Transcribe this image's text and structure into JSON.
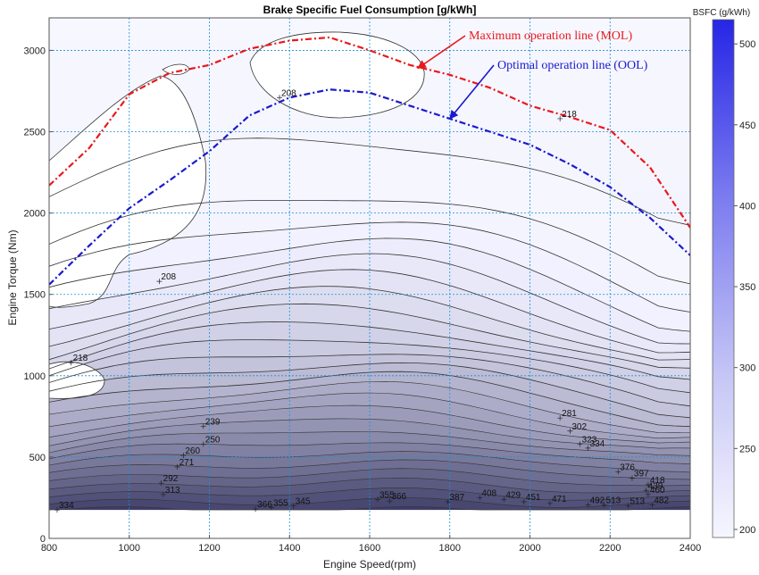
{
  "chart_data": {
    "type": "contour",
    "title": "Brake Specific Fuel Consumption [g/kWh]",
    "xlabel": "Engine Speed(rpm)",
    "ylabel": "Engine Torque (Nm)",
    "xlim": [
      800,
      2400
    ],
    "ylim": [
      0,
      3200
    ],
    "xticks": [
      800,
      1000,
      1200,
      1400,
      1600,
      1800,
      2000,
      2200,
      2400
    ],
    "yticks": [
      0,
      500,
      1000,
      1500,
      2000,
      2500,
      3000
    ],
    "grid": true,
    "colorbar": {
      "title": "BSFC (g/kWh)",
      "range": [
        195,
        515
      ],
      "ticks": [
        200,
        250,
        300,
        350,
        400,
        450,
        500
      ],
      "color_low": "#f4f4ff",
      "color_high": "#2a2ae8"
    },
    "contour_labels": [
      {
        "text": "334",
        "x": 820,
        "y": 175
      },
      {
        "text": "218",
        "x": 855,
        "y": 1080
      },
      {
        "text": "208",
        "x": 1075,
        "y": 1580
      },
      {
        "text": "239",
        "x": 1185,
        "y": 690
      },
      {
        "text": "250",
        "x": 1185,
        "y": 580
      },
      {
        "text": "260",
        "x": 1135,
        "y": 510
      },
      {
        "text": "271",
        "x": 1120,
        "y": 440
      },
      {
        "text": "292",
        "x": 1080,
        "y": 340
      },
      {
        "text": "313",
        "x": 1085,
        "y": 270
      },
      {
        "text": "366",
        "x": 1315,
        "y": 180
      },
      {
        "text": "355",
        "x": 1355,
        "y": 190
      },
      {
        "text": "345",
        "x": 1410,
        "y": 200
      },
      {
        "text": "208",
        "x": 1375,
        "y": 2710
      },
      {
        "text": "355",
        "x": 1620,
        "y": 240
      },
      {
        "text": "366",
        "x": 1650,
        "y": 230
      },
      {
        "text": "387",
        "x": 1795,
        "y": 225
      },
      {
        "text": "408",
        "x": 1875,
        "y": 250
      },
      {
        "text": "429",
        "x": 1935,
        "y": 240
      },
      {
        "text": "451",
        "x": 1985,
        "y": 225
      },
      {
        "text": "471",
        "x": 2050,
        "y": 215
      },
      {
        "text": "492",
        "x": 2145,
        "y": 205
      },
      {
        "text": "513",
        "x": 2185,
        "y": 205
      },
      {
        "text": "218",
        "x": 2075,
        "y": 2580
      },
      {
        "text": "281",
        "x": 2075,
        "y": 740
      },
      {
        "text": "302",
        "x": 2100,
        "y": 660
      },
      {
        "text": "323",
        "x": 2125,
        "y": 580
      },
      {
        "text": "334",
        "x": 2145,
        "y": 555
      },
      {
        "text": "376",
        "x": 2220,
        "y": 410
      },
      {
        "text": "397",
        "x": 2255,
        "y": 370
      },
      {
        "text": "418",
        "x": 2295,
        "y": 330
      },
      {
        "text": "439",
        "x": 2290,
        "y": 295
      },
      {
        "text": "460",
        "x": 2295,
        "y": 270
      },
      {
        "text": "513",
        "x": 2245,
        "y": 200
      },
      {
        "text": "482",
        "x": 2305,
        "y": 205
      },
      {
        "text": "492",
        "x": 2410,
        "y": 205
      }
    ],
    "series": [
      {
        "name": "Maximum operation line (MOL)",
        "color": "#e8191c",
        "x": [
          800,
          900,
          1000,
          1100,
          1200,
          1300,
          1400,
          1500,
          1600,
          1700,
          1800,
          1900,
          2000,
          2100,
          2200,
          2300,
          2400
        ],
        "y": [
          2170,
          2400,
          2730,
          2860,
          2910,
          3010,
          3060,
          3080,
          3000,
          2910,
          2850,
          2770,
          2660,
          2590,
          2510,
          2280,
          1910
        ]
      },
      {
        "name": "Optimal operation line (OOL)",
        "color": "#1a1acc",
        "x": [
          800,
          900,
          1000,
          1100,
          1200,
          1300,
          1400,
          1500,
          1600,
          1700,
          1800,
          1900,
          2000,
          2100,
          2200,
          2300,
          2400
        ],
        "y": [
          1560,
          1800,
          2030,
          2200,
          2380,
          2600,
          2710,
          2760,
          2740,
          2660,
          2580,
          2500,
          2420,
          2300,
          2160,
          1970,
          1740
        ]
      }
    ],
    "annotations": [
      {
        "text": "Maximum operation line (MOL)",
        "color": "#e8191c",
        "arrow_to": [
          1720,
          2890
        ]
      },
      {
        "text": "Optimal operation line (OOL)",
        "color": "#1a1acc",
        "arrow_to": [
          1800,
          2580
        ]
      }
    ]
  }
}
